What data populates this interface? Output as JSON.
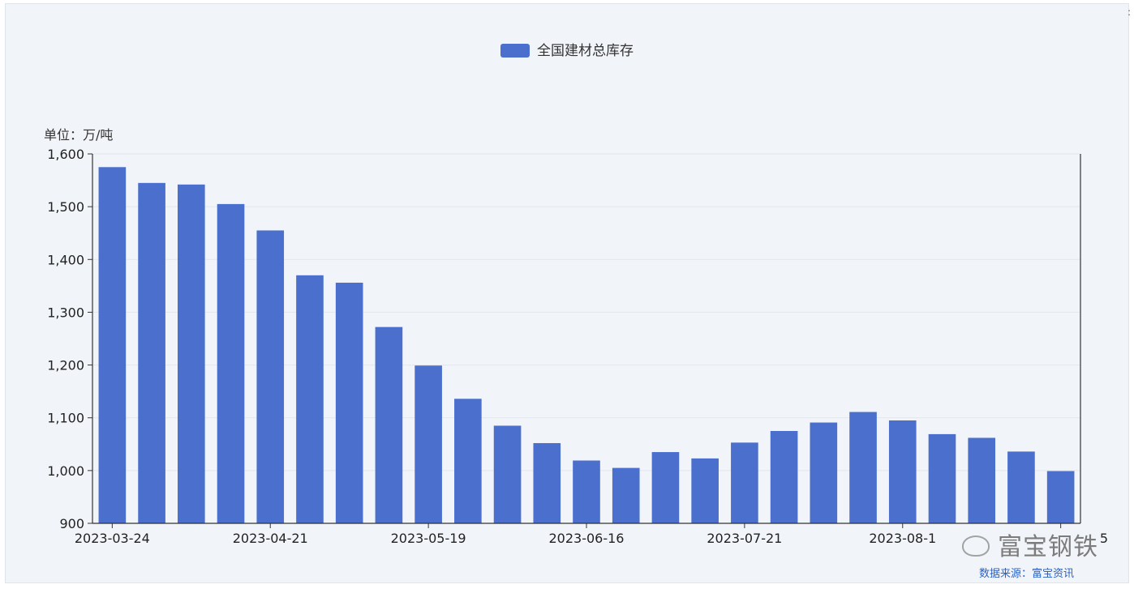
{
  "chart_data": {
    "type": "bar",
    "legend": {
      "label": "全国建材总库存",
      "color": "#4a6fcd",
      "position": "top-center"
    },
    "unit_label": "单位：万/吨",
    "ylim": [
      900,
      1600
    ],
    "yticks": [
      "1,600",
      "1,500",
      "1,400",
      "1,300",
      "1,200",
      "1,100",
      "1,000",
      "900"
    ],
    "ytick_values": [
      1600,
      1500,
      1400,
      1300,
      1200,
      1100,
      1000,
      900
    ],
    "grid": true,
    "x_labels": [
      {
        "index": 0,
        "text": "2023-03-24"
      },
      {
        "index": 4,
        "text": "2023-04-21"
      },
      {
        "index": 8,
        "text": "2023-05-19"
      },
      {
        "index": 12,
        "text": "2023-06-16"
      },
      {
        "index": 16,
        "text": "2023-07-21"
      },
      {
        "index": 20,
        "text": "2023-08-1"
      },
      {
        "index": 24,
        "text": "5"
      }
    ],
    "series": [
      {
        "name": "全国建材总库存",
        "color": "#4a6fcd",
        "values": [
          1575,
          1545,
          1542,
          1505,
          1455,
          1370,
          1356,
          1272,
          1199,
          1136,
          1085,
          1052,
          1019,
          1005,
          1035,
          1023,
          1053,
          1075,
          1091,
          1111,
          1095,
          1069,
          1062,
          1036,
          999
        ]
      }
    ]
  },
  "watermark": {
    "text": "富宝钢铁",
    "icon": "wechat-logo-icon"
  },
  "source_text": "数据来源：富宝资讯",
  "corner_mark": ":"
}
